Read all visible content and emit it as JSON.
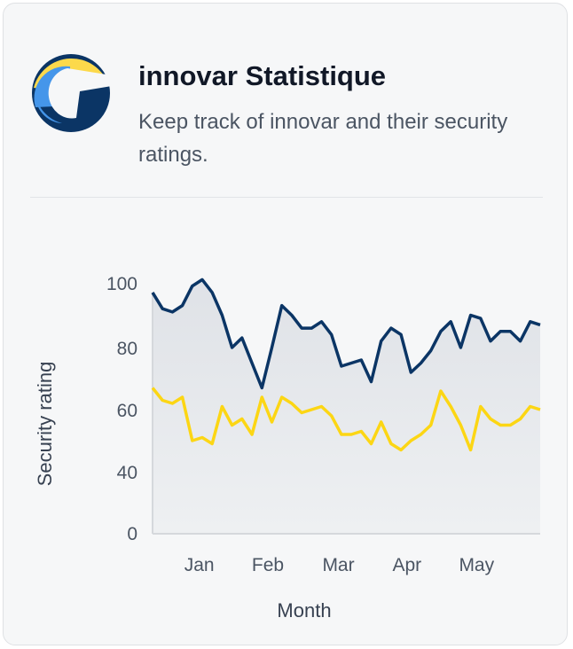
{
  "header": {
    "title": "innovar Statistique",
    "subtitle": "Keep track of innovar and their security ratings.",
    "logo_colors": [
      "#fcd94b",
      "#4596ea",
      "#0b3565"
    ]
  },
  "chart_data": {
    "type": "area",
    "xlabel": "Month",
    "ylabel": "Security rating",
    "yticks": [
      0,
      40,
      60,
      80,
      100
    ],
    "xticks": [
      {
        "label": "Jan",
        "index": 4.7
      },
      {
        "label": "Feb",
        "index": 11.6
      },
      {
        "label": "Mar",
        "index": 18.7
      },
      {
        "label": "Apr",
        "index": 25.6
      },
      {
        "label": "May",
        "index": 32.6
      }
    ],
    "grid": false,
    "series": [
      {
        "color": "#0b3565",
        "filled": true,
        "values": [
          97,
          92,
          91,
          93,
          99,
          101,
          97,
          90,
          80,
          83,
          75,
          67,
          80,
          93,
          90,
          86,
          86,
          88,
          84,
          74,
          75,
          76,
          69,
          82,
          86,
          84,
          72,
          75,
          79,
          85,
          88,
          80,
          90,
          89,
          82,
          85,
          85,
          82,
          88,
          87
        ]
      },
      {
        "color": "#fcd614",
        "filled": false,
        "values": [
          67,
          63,
          62,
          64,
          50,
          51,
          49,
          61,
          55,
          57,
          52,
          64,
          56,
          64,
          62,
          59,
          60,
          61,
          58,
          52,
          52,
          53,
          49,
          56,
          49,
          47,
          50,
          52,
          55,
          66,
          61,
          55,
          47,
          61,
          57,
          55,
          55,
          57,
          61,
          60
        ]
      }
    ]
  }
}
